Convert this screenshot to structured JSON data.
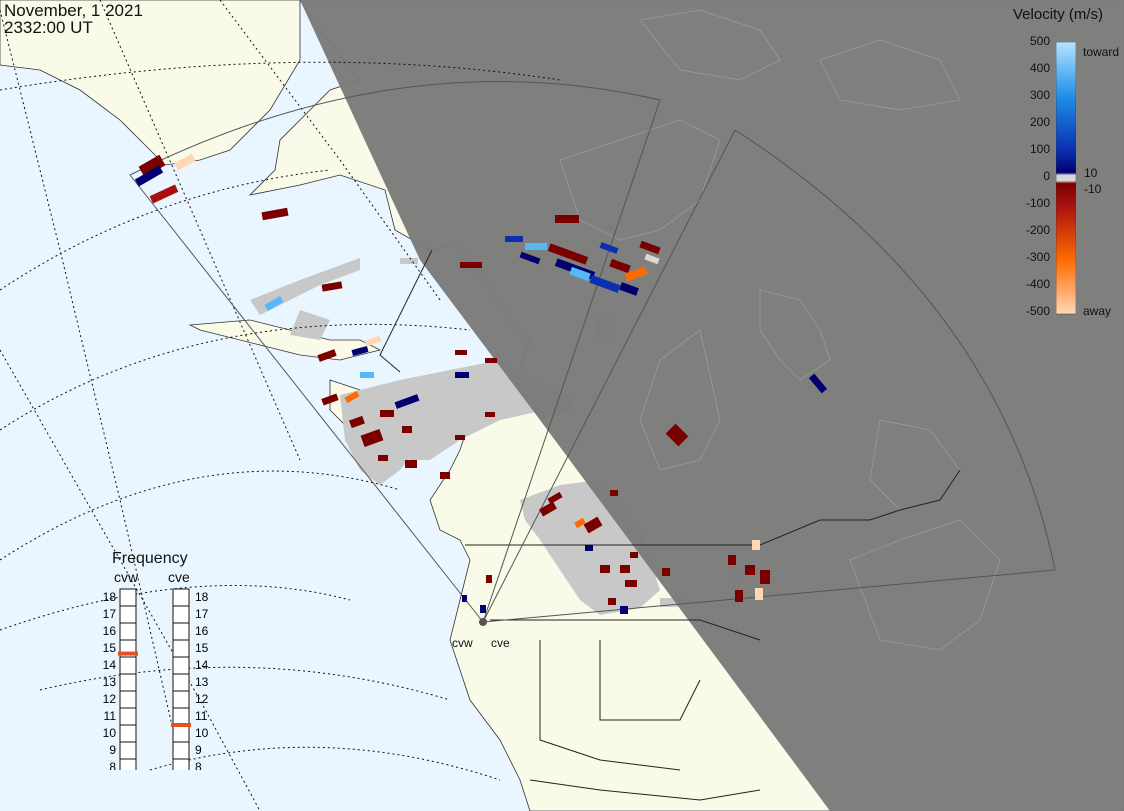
{
  "title": {
    "date": "November, 1 2021",
    "time": "2332:00 UT"
  },
  "colorbar": {
    "title": "Velocity (m/s)",
    "ticks": [
      "500",
      "400",
      "300",
      "200",
      "100",
      "0",
      "-100",
      "-200",
      "-300",
      "-400",
      "-500"
    ],
    "side_labels": {
      "toward": "toward",
      "ten": "10",
      "minus_ten": "-10",
      "away": "away"
    },
    "colors": [
      "#ffd7b5",
      "#ff9a3c",
      "#ff6a00",
      "#d84010",
      "#a81010",
      "#7a0000",
      "#d8d8d8",
      "#000070",
      "#0a2fb0",
      "#1a5fd8",
      "#1e8fe8",
      "#56b8f5",
      "#b8e4ff"
    ]
  },
  "frequency": {
    "title": "Frequency",
    "radars": [
      {
        "name": "cvw",
        "selected_mhz": 14.7
      },
      {
        "name": "cve",
        "selected_mhz": 10.5
      }
    ],
    "scale": [
      "18",
      "17",
      "16",
      "15",
      "14",
      "13",
      "12",
      "11",
      "10",
      "9",
      "8"
    ],
    "indicator_color": "#e8501e"
  },
  "map_labels": {
    "radar_west": "cvw",
    "radar_east": "cve"
  },
  "map_colors": {
    "ocean": "#eaf6ff",
    "land": "#fafae8",
    "night": "#7a7a7a",
    "ground_scatter": "#c8c8c8"
  }
}
